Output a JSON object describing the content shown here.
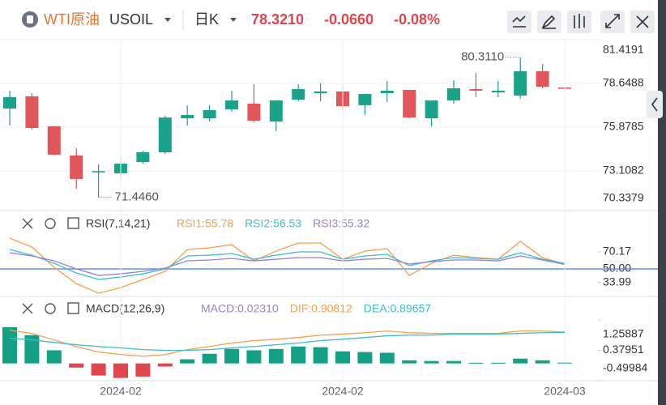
{
  "header": {
    "name": "WTI原油",
    "symbol": "USOIL",
    "period": "日K",
    "price": "78.3210",
    "change": "-0.0660",
    "change_pct": "-0.08%"
  },
  "chart_data": [
    {
      "type": "candlestick",
      "up_color": "#1aa38a",
      "down_color": "#e0565b",
      "open": [
        77.06,
        77.83,
        75.93,
        74.09,
        73.05,
        72.96,
        73.67,
        74.29,
        76.44,
        76.44,
        77.01,
        77.37,
        76.24,
        77.62,
        78.03,
        78.14,
        77.27,
        78.03,
        78.24,
        76.44,
        77.57,
        78.29,
        78.08,
        77.88,
        79.42,
        78.39
      ],
      "high": [
        78.19,
        78.03,
        75.93,
        74.55,
        73.52,
        74.03,
        74.39,
        76.6,
        77.26,
        77.26,
        78.19,
        78.6,
        77.57,
        78.6,
        78.65,
        78.55,
        77.98,
        78.8,
        78.24,
        77.57,
        78.85,
        79.31,
        78.8,
        80.311,
        79.88,
        78.39
      ],
      "low": [
        75.99,
        75.73,
        74.09,
        71.98,
        71.446,
        72.65,
        73.57,
        74.19,
        75.98,
        76.24,
        76.86,
        76.19,
        75.62,
        77.52,
        77.52,
        76.91,
        76.65,
        77.47,
        76.44,
        75.93,
        77.37,
        77.78,
        77.78,
        77.68,
        78.34,
        78.29
      ],
      "close": [
        77.78,
        75.83,
        74.14,
        72.6,
        73.1,
        73.57,
        74.29,
        76.49,
        76.65,
        76.96,
        77.57,
        76.29,
        77.57,
        78.29,
        78.14,
        77.21,
        77.98,
        78.19,
        76.49,
        77.57,
        78.34,
        78.19,
        78.19,
        79.42,
        78.44,
        78.321
      ],
      "annotations": [
        {
          "text": "80.3110",
          "value": 80.311
        },
        {
          "text": "71.4460",
          "value": 71.446
        }
      ],
      "ylim": [
        70.7,
        81.47
      ],
      "yticks": [
        81.4191,
        78.6488,
        75.8785,
        73.1082,
        70.3379
      ],
      "grid": true
    },
    {
      "type": "line",
      "title": "RSI(7,14,21)",
      "ylim": [
        18.3,
        95.2
      ],
      "yticks": [
        70.17,
        {
          "value": 50,
          "label": "50.00"
        },
        33.99
      ],
      "ref_line": 50,
      "ref_color": "#3b82f6",
      "series": [
        {
          "name": "RSI1:55.78",
          "color": "#f5a04a",
          "values": [
            86.5,
            76.0,
            51.9,
            32.7,
            21.2,
            27.9,
            37.5,
            47.1,
            73.1,
            75.0,
            78.8,
            59.6,
            71.2,
            80.8,
            80.8,
            61.5,
            71.2,
            74.0,
            42.3,
            56.7,
            66.3,
            63.5,
            61.5,
            82.7,
            63.5,
            55.78
          ]
        },
        {
          "name": "RSI2:56.53",
          "color": "#3cbdd0",
          "values": [
            73.1,
            66.3,
            56.7,
            45.2,
            37.5,
            40.4,
            44.2,
            50.0,
            65.4,
            66.3,
            68.3,
            61.5,
            66.3,
            70.2,
            70.2,
            61.5,
            65.4,
            67.3,
            53.8,
            59.6,
            63.5,
            62.5,
            61.5,
            69.2,
            61.5,
            56.53
          ]
        },
        {
          "name": "RSI3:55.32",
          "color": "#9b7fd6",
          "values": [
            69.2,
            65.4,
            59.6,
            50.0,
            42.3,
            44.2,
            47.1,
            51.0,
            59.6,
            60.6,
            62.5,
            59.6,
            61.5,
            63.5,
            63.5,
            59.6,
            61.5,
            62.5,
            55.8,
            58.7,
            60.6,
            60.6,
            59.6,
            65.4,
            60.6,
            55.32
          ]
        }
      ]
    },
    {
      "type": "macd",
      "title": "MACD(12,26,9)",
      "ylim": [
        -0.49984,
        1.25887
      ],
      "yticks": [
        1.25887,
        0.37951,
        -0.49984
      ],
      "categories": [
        null,
        null,
        null,
        null,
        null,
        "2024-02",
        null,
        null,
        null,
        null,
        null,
        null,
        null,
        null,
        null,
        "2024-02",
        null,
        null,
        null,
        null,
        null,
        null,
        null,
        null,
        null,
        "2024-03"
      ],
      "series": [
        {
          "name": "MACD:0.02310",
          "color": "#9b7fd6",
          "up_color": "#14a085",
          "down_color": "#e0464b",
          "type": "bar",
          "values": [
            1.05,
            0.82,
            0.38,
            -0.12,
            -0.35,
            -0.42,
            -0.38,
            -0.09,
            0.12,
            0.28,
            0.42,
            0.38,
            0.42,
            0.49,
            0.47,
            0.35,
            0.33,
            0.31,
            0.09,
            0.07,
            0.07,
            0.02,
            0.02,
            0.14,
            0.09,
            0.0231
          ]
        },
        {
          "name": "DIF:0.90812",
          "color": "#f5a04a",
          "type": "line",
          "values": [
            0.96,
            0.87,
            0.68,
            0.49,
            0.33,
            0.26,
            0.21,
            0.26,
            0.4,
            0.49,
            0.59,
            0.66,
            0.7,
            0.75,
            0.82,
            0.85,
            0.89,
            0.94,
            0.89,
            0.87,
            0.87,
            0.87,
            0.87,
            0.94,
            0.94,
            0.90812
          ]
        },
        {
          "name": "DEA:0.89657",
          "color": "#3cbdd0",
          "type": "line",
          "values": [
            0.73,
            0.68,
            0.61,
            0.54,
            0.49,
            0.45,
            0.4,
            0.38,
            0.38,
            0.4,
            0.45,
            0.49,
            0.54,
            0.59,
            0.66,
            0.7,
            0.75,
            0.8,
            0.82,
            0.82,
            0.85,
            0.85,
            0.85,
            0.87,
            0.89,
            0.89657
          ]
        }
      ]
    }
  ]
}
